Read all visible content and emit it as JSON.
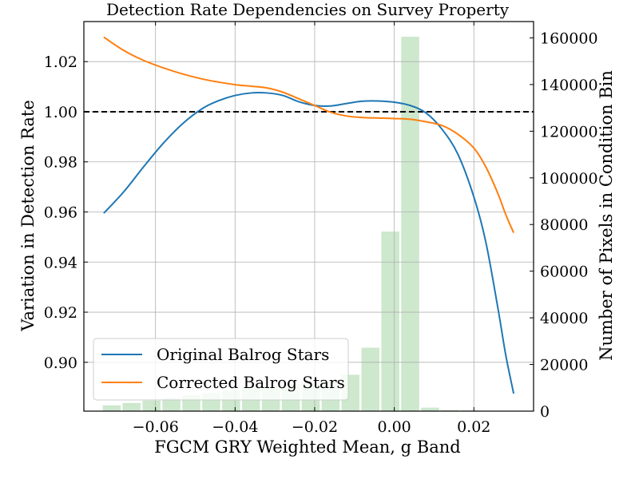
{
  "chart_data": {
    "type": "line",
    "title": "Detection Rate Dependencies on Survey Property",
    "xlabel": "FGCM GRY Weighted Mean, g Band",
    "ylabel": "Variation in Detection Rate",
    "y2label": "Number of Pixels in Condition Bin",
    "xlim": [
      -0.078,
      0.035
    ],
    "ylim": [
      0.8805,
      1.036
    ],
    "y2lim": [
      0,
      167000
    ],
    "grid": true,
    "legend_position": "lower-left",
    "xticks": [
      -0.06,
      -0.04,
      -0.02,
      0.0,
      0.02
    ],
    "xtick_labels": [
      "−0.06",
      "−0.04",
      "−0.02",
      "0.00",
      "0.02"
    ],
    "yticks": [
      0.9,
      0.92,
      0.94,
      0.96,
      0.98,
      1.0,
      1.02
    ],
    "ytick_labels": [
      "0.90",
      "0.92",
      "0.94",
      "0.96",
      "0.98",
      "1.00",
      "1.02"
    ],
    "y2ticks": [
      0,
      20000,
      40000,
      60000,
      80000,
      100000,
      120000,
      140000,
      160000
    ],
    "y2tick_labels": [
      "0",
      "20000",
      "40000",
      "60000",
      "80000",
      "100000",
      "120000",
      "140000",
      "160000"
    ],
    "reference_line": {
      "y": 1.0,
      "style": "dashed",
      "color": "#000000"
    },
    "series": [
      {
        "name": "Original Balrog Stars",
        "color": "#1f77b4",
        "x": [
          -0.073,
          -0.068,
          -0.063,
          -0.058,
          -0.053,
          -0.048,
          -0.044,
          -0.04,
          -0.036,
          -0.032,
          -0.028,
          -0.024,
          -0.02,
          -0.016,
          -0.012,
          -0.008,
          -0.004,
          0.0,
          0.004,
          0.008,
          0.012,
          0.016,
          0.02,
          0.023,
          0.026,
          0.028,
          0.03
        ],
        "y": [
          0.9595,
          0.968,
          0.978,
          0.9875,
          0.9955,
          1.0015,
          1.0045,
          1.0065,
          1.0075,
          1.0075,
          1.0065,
          1.004,
          1.0025,
          1.0023,
          1.0033,
          1.0042,
          1.0043,
          1.0038,
          1.0025,
          0.9995,
          0.993,
          0.983,
          0.966,
          0.948,
          0.922,
          0.903,
          0.8875
        ]
      },
      {
        "name": "Corrected Balrog Stars",
        "color": "#ff7f0e",
        "x": [
          -0.073,
          -0.068,
          -0.063,
          -0.058,
          -0.053,
          -0.048,
          -0.044,
          -0.04,
          -0.036,
          -0.032,
          -0.028,
          -0.024,
          -0.02,
          -0.016,
          -0.012,
          -0.008,
          -0.004,
          0.0,
          0.004,
          0.008,
          0.012,
          0.016,
          0.02,
          0.023,
          0.026,
          0.028,
          0.03
        ],
        "y": [
          1.0298,
          1.0245,
          1.0205,
          1.0175,
          1.015,
          1.013,
          1.0118,
          1.0108,
          1.0102,
          1.0095,
          1.0078,
          1.0052,
          1.0025,
          0.9998,
          0.9983,
          0.9977,
          0.9975,
          0.9973,
          0.997,
          0.996,
          0.9945,
          0.991,
          0.9855,
          0.978,
          0.9675,
          0.959,
          0.9517
        ]
      }
    ],
    "histogram": {
      "color": "#2ca02c",
      "opacity": 0.24,
      "bin_edges": [
        -0.0735,
        -0.0685,
        -0.0635,
        -0.0585,
        -0.0535,
        -0.0485,
        -0.0435,
        -0.0385,
        -0.0335,
        -0.0285,
        -0.0235,
        -0.0185,
        -0.0135,
        -0.0085,
        -0.0035,
        0.0015,
        0.0065,
        0.0115,
        0.0165,
        0.0215,
        0.0265,
        0.0315
      ],
      "counts": [
        2500,
        3500,
        4500,
        5500,
        6800,
        7800,
        8800,
        9800,
        10700,
        11500,
        12500,
        13300,
        15600,
        27200,
        77000,
        160500,
        1500,
        400,
        300,
        150,
        100
      ]
    }
  }
}
